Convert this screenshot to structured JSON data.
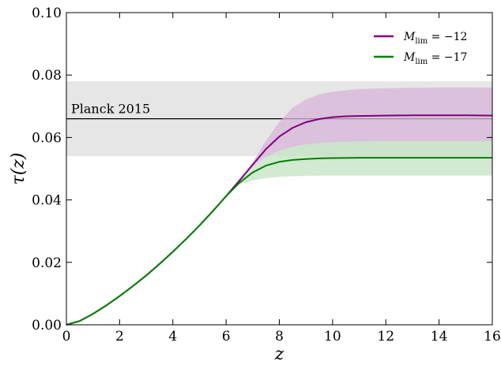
{
  "chart_data": {
    "type": "line",
    "title": "",
    "xlabel": "z",
    "ylabel": "τ(z)",
    "xlim": [
      0,
      16
    ],
    "ylim": [
      0.0,
      0.1
    ],
    "xticks": [
      0,
      2,
      4,
      6,
      8,
      10,
      12,
      14,
      16
    ],
    "xtick_labels": [
      "0",
      "2",
      "4",
      "6",
      "8",
      "10",
      "12",
      "14",
      "16"
    ],
    "yticks": [
      0.0,
      0.02,
      0.04,
      0.06,
      0.08,
      0.1
    ],
    "ytick_labels": [
      "0.00",
      "0.02",
      "0.04",
      "0.06",
      "0.08",
      "0.10"
    ],
    "grid": false,
    "legend_position": "top-right",
    "reference": {
      "label": "Planck 2015",
      "value": 0.066,
      "band": [
        0.054,
        0.078
      ],
      "line_color": "#000000",
      "band_color": "#e6e6e6"
    },
    "series": [
      {
        "name": "M_lim = −12",
        "legend_main": "M",
        "legend_sub": "lim",
        "legend_rest": " = −12",
        "color": "#800080",
        "band_color": "#d7b4d7",
        "x": [
          0,
          0.5,
          1,
          1.5,
          2,
          2.5,
          3,
          3.5,
          4,
          4.5,
          5,
          5.5,
          6,
          6.5,
          7,
          7.5,
          8,
          8.5,
          9,
          9.5,
          10,
          10.5,
          11,
          12,
          13,
          14,
          15,
          16
        ],
        "y": [
          0,
          0.0012,
          0.0035,
          0.0062,
          0.0092,
          0.0124,
          0.0158,
          0.0195,
          0.0234,
          0.0275,
          0.0318,
          0.0364,
          0.0412,
          0.0462,
          0.0513,
          0.0563,
          0.0603,
          0.0631,
          0.0649,
          0.0659,
          0.0665,
          0.0668,
          0.0669,
          0.067,
          0.0671,
          0.0671,
          0.0671,
          0.067
        ],
        "band": {
          "x": [
            6.5,
            7,
            7.5,
            8,
            8.5,
            9,
            9.5,
            10,
            11,
            12,
            13,
            14,
            16
          ],
          "lower": [
            0.0462,
            0.0505,
            0.0538,
            0.0558,
            0.057,
            0.0578,
            0.0582,
            0.0585,
            0.0587,
            0.0588,
            0.0588,
            0.0588,
            0.0588
          ],
          "upper": [
            0.0462,
            0.0521,
            0.059,
            0.065,
            0.0695,
            0.0722,
            0.0738,
            0.0747,
            0.0755,
            0.0758,
            0.0759,
            0.076,
            0.076
          ]
        }
      },
      {
        "name": "M_lim = −17",
        "legend_main": "M",
        "legend_sub": "lim",
        "legend_rest": " = −17",
        "color": "#008000",
        "band_color": "#c3e2c3",
        "x": [
          0,
          0.5,
          1,
          1.5,
          2,
          2.5,
          3,
          3.5,
          4,
          4.5,
          5,
          5.5,
          6,
          6.5,
          7,
          7.5,
          8,
          8.5,
          9,
          9.5,
          10,
          11,
          12,
          13,
          14,
          15,
          16
        ],
        "y": [
          0,
          0.0012,
          0.0035,
          0.0062,
          0.0092,
          0.0124,
          0.0158,
          0.0195,
          0.0234,
          0.0275,
          0.0318,
          0.0364,
          0.0412,
          0.0455,
          0.0488,
          0.051,
          0.0522,
          0.0528,
          0.0531,
          0.0533,
          0.0534,
          0.0535,
          0.0535,
          0.0535,
          0.0535,
          0.0535,
          0.0535
        ],
        "band": {
          "x": [
            6.5,
            7,
            7.5,
            8,
            8.5,
            9,
            9.5,
            10,
            11,
            12,
            13,
            14,
            16
          ],
          "lower": [
            0.045,
            0.0462,
            0.047,
            0.0474,
            0.0476,
            0.0477,
            0.0478,
            0.0478,
            0.0478,
            0.0478,
            0.0478,
            0.0478,
            0.0478
          ],
          "upper": [
            0.0462,
            0.0505,
            0.0538,
            0.0558,
            0.057,
            0.0578,
            0.0582,
            0.0585,
            0.0587,
            0.0588,
            0.0588,
            0.0588,
            0.0588
          ]
        }
      }
    ]
  }
}
